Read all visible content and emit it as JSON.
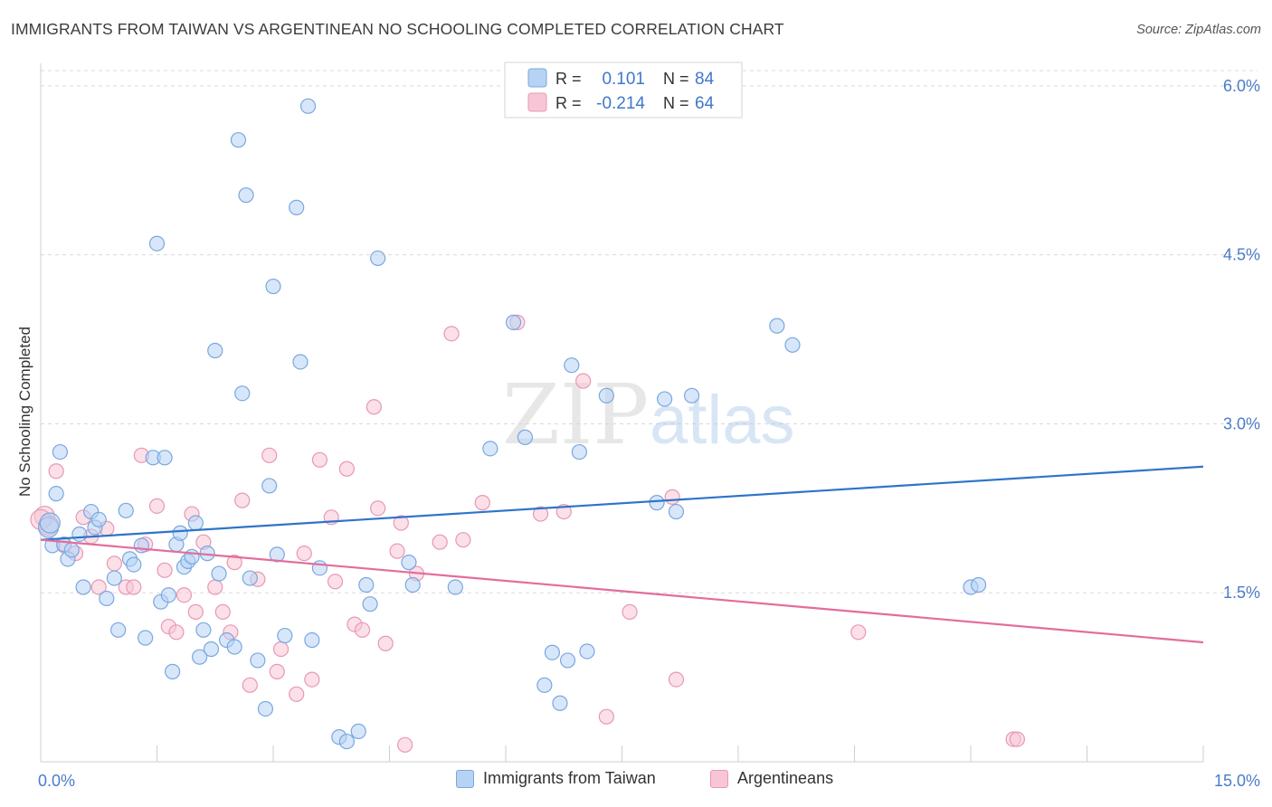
{
  "header": {
    "title": "IMMIGRANTS FROM TAIWAN VS ARGENTINEAN NO SCHOOLING COMPLETED CORRELATION CHART",
    "source": "Source: ZipAtlas.com"
  },
  "watermark": {
    "zip": "ZIP",
    "atlas": "atlas"
  },
  "legend_top": {
    "rows": [
      {
        "r_label": "R =",
        "r_value": "0.101",
        "n_label": "N =",
        "n_value": "84"
      },
      {
        "r_label": "R =",
        "r_value": "-0.214",
        "n_label": "N =",
        "n_value": "64"
      }
    ]
  },
  "legend_bottom": {
    "items": [
      {
        "label": "Immigrants from Taiwan"
      },
      {
        "label": "Argentineans"
      }
    ]
  },
  "colors": {
    "blue_fill": "#b7d3f4",
    "blue_stroke": "#7aa7df",
    "blue_line": "#2f74c9",
    "pink_fill": "#f7c6d6",
    "pink_stroke": "#e898b3",
    "pink_line": "#e46c9c",
    "axis_value": "#4a7cc9",
    "grid": "#d9d9d9"
  },
  "chart_data": {
    "type": "scatter",
    "title": "IMMIGRANTS FROM TAIWAN VS ARGENTINEAN NO SCHOOLING COMPLETED CORRELATION CHART",
    "xlabel": "",
    "ylabel": "No Schooling Completed",
    "xlim": [
      0,
      15
    ],
    "ylim": [
      0,
      6.2
    ],
    "x_tick_labels": [
      "0.0%",
      "15.0%"
    ],
    "y_ticks": [
      1.5,
      3.0,
      4.5,
      6.0
    ],
    "y_tick_labels": [
      "1.5%",
      "3.0%",
      "4.5%",
      "6.0%"
    ],
    "grid": true,
    "legend_position": "top-center",
    "series": [
      {
        "name": "Immigrants from Taiwan",
        "r": 0.101,
        "n": 84,
        "trend": {
          "x": [
            0,
            15
          ],
          "y": [
            1.97,
            2.62
          ]
        },
        "points": [
          [
            0.1,
            2.08
          ],
          [
            0.15,
            1.92
          ],
          [
            0.2,
            2.38
          ],
          [
            0.25,
            2.75
          ],
          [
            0.3,
            1.93
          ],
          [
            0.35,
            1.8
          ],
          [
            0.4,
            1.88
          ],
          [
            0.5,
            2.02
          ],
          [
            0.55,
            1.55
          ],
          [
            0.65,
            2.22
          ],
          [
            0.7,
            2.08
          ],
          [
            0.75,
            2.15
          ],
          [
            0.85,
            1.45
          ],
          [
            0.95,
            1.63
          ],
          [
            1.0,
            1.17
          ],
          [
            1.1,
            2.23
          ],
          [
            1.15,
            1.8
          ],
          [
            1.2,
            1.75
          ],
          [
            1.3,
            1.92
          ],
          [
            1.35,
            1.1
          ],
          [
            1.45,
            2.7
          ],
          [
            1.5,
            4.6
          ],
          [
            1.55,
            1.42
          ],
          [
            1.6,
            2.7
          ],
          [
            1.65,
            1.48
          ],
          [
            1.7,
            0.8
          ],
          [
            1.75,
            1.93
          ],
          [
            1.8,
            2.03
          ],
          [
            1.85,
            1.73
          ],
          [
            1.9,
            1.78
          ],
          [
            1.95,
            1.82
          ],
          [
            2.0,
            2.12
          ],
          [
            2.05,
            0.93
          ],
          [
            2.1,
            1.17
          ],
          [
            2.15,
            1.85
          ],
          [
            2.2,
            1.0
          ],
          [
            2.25,
            3.65
          ],
          [
            2.3,
            1.67
          ],
          [
            2.4,
            1.08
          ],
          [
            2.5,
            1.02
          ],
          [
            2.55,
            5.52
          ],
          [
            2.6,
            3.27
          ],
          [
            2.65,
            5.03
          ],
          [
            2.7,
            1.63
          ],
          [
            2.8,
            0.9
          ],
          [
            2.9,
            0.47
          ],
          [
            2.95,
            2.45
          ],
          [
            3.0,
            4.22
          ],
          [
            3.05,
            1.84
          ],
          [
            3.15,
            1.12
          ],
          [
            3.3,
            4.92
          ],
          [
            3.35,
            3.55
          ],
          [
            3.45,
            5.82
          ],
          [
            3.5,
            1.08
          ],
          [
            3.6,
            1.72
          ],
          [
            3.85,
            0.22
          ],
          [
            3.95,
            0.18
          ],
          [
            4.1,
            0.27
          ],
          [
            4.2,
            1.57
          ],
          [
            4.25,
            1.4
          ],
          [
            4.35,
            4.47
          ],
          [
            4.75,
            1.77
          ],
          [
            4.8,
            1.57
          ],
          [
            5.35,
            1.55
          ],
          [
            5.8,
            2.78
          ],
          [
            6.1,
            3.9
          ],
          [
            6.25,
            2.88
          ],
          [
            6.5,
            0.68
          ],
          [
            6.6,
            0.97
          ],
          [
            6.7,
            0.52
          ],
          [
            6.8,
            0.9
          ],
          [
            6.85,
            3.52
          ],
          [
            6.95,
            2.75
          ],
          [
            7.05,
            0.98
          ],
          [
            7.3,
            3.25
          ],
          [
            7.95,
            2.3
          ],
          [
            8.05,
            3.22
          ],
          [
            8.2,
            2.22
          ],
          [
            8.4,
            3.25
          ],
          [
            9.5,
            3.87
          ],
          [
            9.7,
            3.7
          ],
          [
            12.0,
            1.55
          ],
          [
            12.1,
            1.57
          ],
          [
            0.12,
            2.12
          ]
        ]
      },
      {
        "name": "Argentineans",
        "r": -0.214,
        "n": 64,
        "trend": {
          "x": [
            0,
            15
          ],
          "y": [
            1.97,
            1.06
          ]
        },
        "points": [
          [
            0.05,
            2.18
          ],
          [
            0.1,
            2.1
          ],
          [
            0.2,
            2.58
          ],
          [
            0.3,
            1.92
          ],
          [
            0.45,
            1.85
          ],
          [
            0.55,
            2.17
          ],
          [
            0.65,
            2.0
          ],
          [
            0.75,
            1.55
          ],
          [
            0.85,
            2.07
          ],
          [
            0.95,
            1.76
          ],
          [
            1.1,
            1.55
          ],
          [
            1.2,
            1.55
          ],
          [
            1.3,
            2.72
          ],
          [
            1.35,
            1.93
          ],
          [
            1.5,
            2.27
          ],
          [
            1.6,
            1.7
          ],
          [
            1.65,
            1.2
          ],
          [
            1.75,
            1.15
          ],
          [
            1.85,
            1.48
          ],
          [
            1.95,
            2.2
          ],
          [
            2.0,
            1.33
          ],
          [
            2.1,
            1.95
          ],
          [
            2.25,
            1.55
          ],
          [
            2.35,
            1.33
          ],
          [
            2.45,
            1.15
          ],
          [
            2.5,
            1.77
          ],
          [
            2.6,
            2.32
          ],
          [
            2.7,
            0.68
          ],
          [
            2.8,
            1.62
          ],
          [
            2.95,
            2.72
          ],
          [
            3.05,
            0.8
          ],
          [
            3.1,
            1.0
          ],
          [
            3.3,
            0.6
          ],
          [
            3.4,
            1.85
          ],
          [
            3.5,
            0.73
          ],
          [
            3.6,
            2.68
          ],
          [
            3.75,
            2.17
          ],
          [
            3.8,
            1.6
          ],
          [
            3.95,
            2.6
          ],
          [
            4.05,
            1.22
          ],
          [
            4.15,
            1.17
          ],
          [
            4.3,
            3.15
          ],
          [
            4.35,
            2.25
          ],
          [
            4.45,
            1.05
          ],
          [
            4.6,
            1.87
          ],
          [
            4.65,
            2.12
          ],
          [
            4.7,
            0.15
          ],
          [
            4.85,
            1.67
          ],
          [
            5.15,
            1.95
          ],
          [
            5.3,
            3.8
          ],
          [
            5.45,
            1.97
          ],
          [
            5.7,
            2.3
          ],
          [
            6.15,
            3.9
          ],
          [
            6.45,
            2.2
          ],
          [
            6.75,
            2.22
          ],
          [
            7.0,
            3.38
          ],
          [
            7.3,
            0.4
          ],
          [
            7.6,
            1.33
          ],
          [
            8.15,
            2.35
          ],
          [
            8.2,
            0.73
          ],
          [
            10.55,
            1.15
          ],
          [
            12.55,
            0.2
          ],
          [
            12.6,
            0.2
          ],
          [
            0.0,
            2.15
          ]
        ]
      }
    ]
  }
}
